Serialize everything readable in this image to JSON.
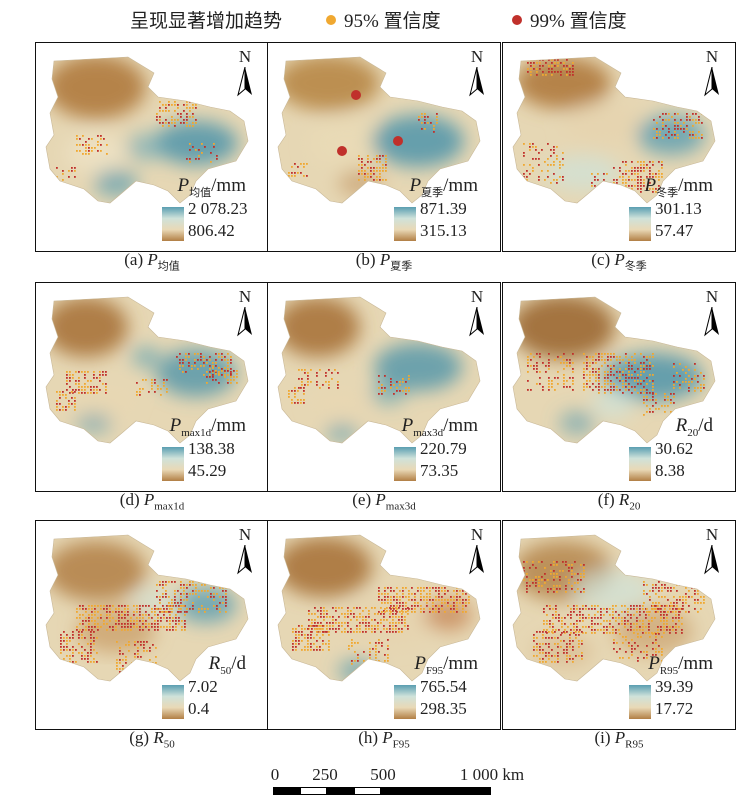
{
  "header": {
    "title": "呈现显著增加趋势",
    "legend": [
      {
        "label": "95% 置信度",
        "color": "#f0a830"
      },
      {
        "label": "99% 置信度",
        "color": "#c0302b"
      }
    ]
  },
  "north_label": "N",
  "panels": [
    {
      "id": "a",
      "var": "P",
      "sub": "均值",
      "unit": "/mm",
      "max": "2 078.23",
      "min": "806.42",
      "caption_prefix": "(a)",
      "caption_var": "P",
      "caption_sub": "均值"
    },
    {
      "id": "b",
      "var": "P",
      "sub": "夏季",
      "unit": "/mm",
      "max": "871.39",
      "min": "315.13",
      "caption_prefix": "(b)",
      "caption_var": "P",
      "caption_sub": "夏季"
    },
    {
      "id": "c",
      "var": "P",
      "sub": "冬季",
      "unit": "/mm",
      "max": "301.13",
      "min": "57.47",
      "caption_prefix": "(c)",
      "caption_var": "P",
      "caption_sub": "冬季"
    },
    {
      "id": "d",
      "var": "P",
      "sub": "max1d",
      "unit": "/mm",
      "max": "138.38",
      "min": "45.29",
      "caption_prefix": "(d)",
      "caption_var": "P",
      "caption_sub": "max1d"
    },
    {
      "id": "e",
      "var": "P",
      "sub": "max3d",
      "unit": "/mm",
      "max": "220.79",
      "min": "73.35",
      "caption_prefix": "(e)",
      "caption_var": "P",
      "caption_sub": "max3d"
    },
    {
      "id": "f",
      "var": "R",
      "sub": "20",
      "unit": "/d",
      "max": "30.62",
      "min": "8.38",
      "caption_prefix": "(f)",
      "caption_var": "R",
      "caption_sub": "20"
    },
    {
      "id": "g",
      "var": "R",
      "sub": "50",
      "unit": "/d",
      "max": "7.02",
      "min": "0.4",
      "caption_prefix": "(g)",
      "caption_var": "R",
      "caption_sub": "50"
    },
    {
      "id": "h",
      "var": "P",
      "sub": "F95",
      "unit": "/mm",
      "max": "765.54",
      "min": "298.35",
      "caption_prefix": "(h)",
      "caption_var": "P",
      "caption_sub": "F95"
    },
    {
      "id": "i",
      "var": "P",
      "sub": "R95",
      "unit": "/mm",
      "max": "39.39",
      "min": "17.72",
      "caption_prefix": "(i)",
      "caption_var": "P",
      "caption_sub": "R95"
    }
  ],
  "scale_bar": {
    "ticks": [
      "0",
      "250",
      "500",
      "1 000 km"
    ]
  }
}
